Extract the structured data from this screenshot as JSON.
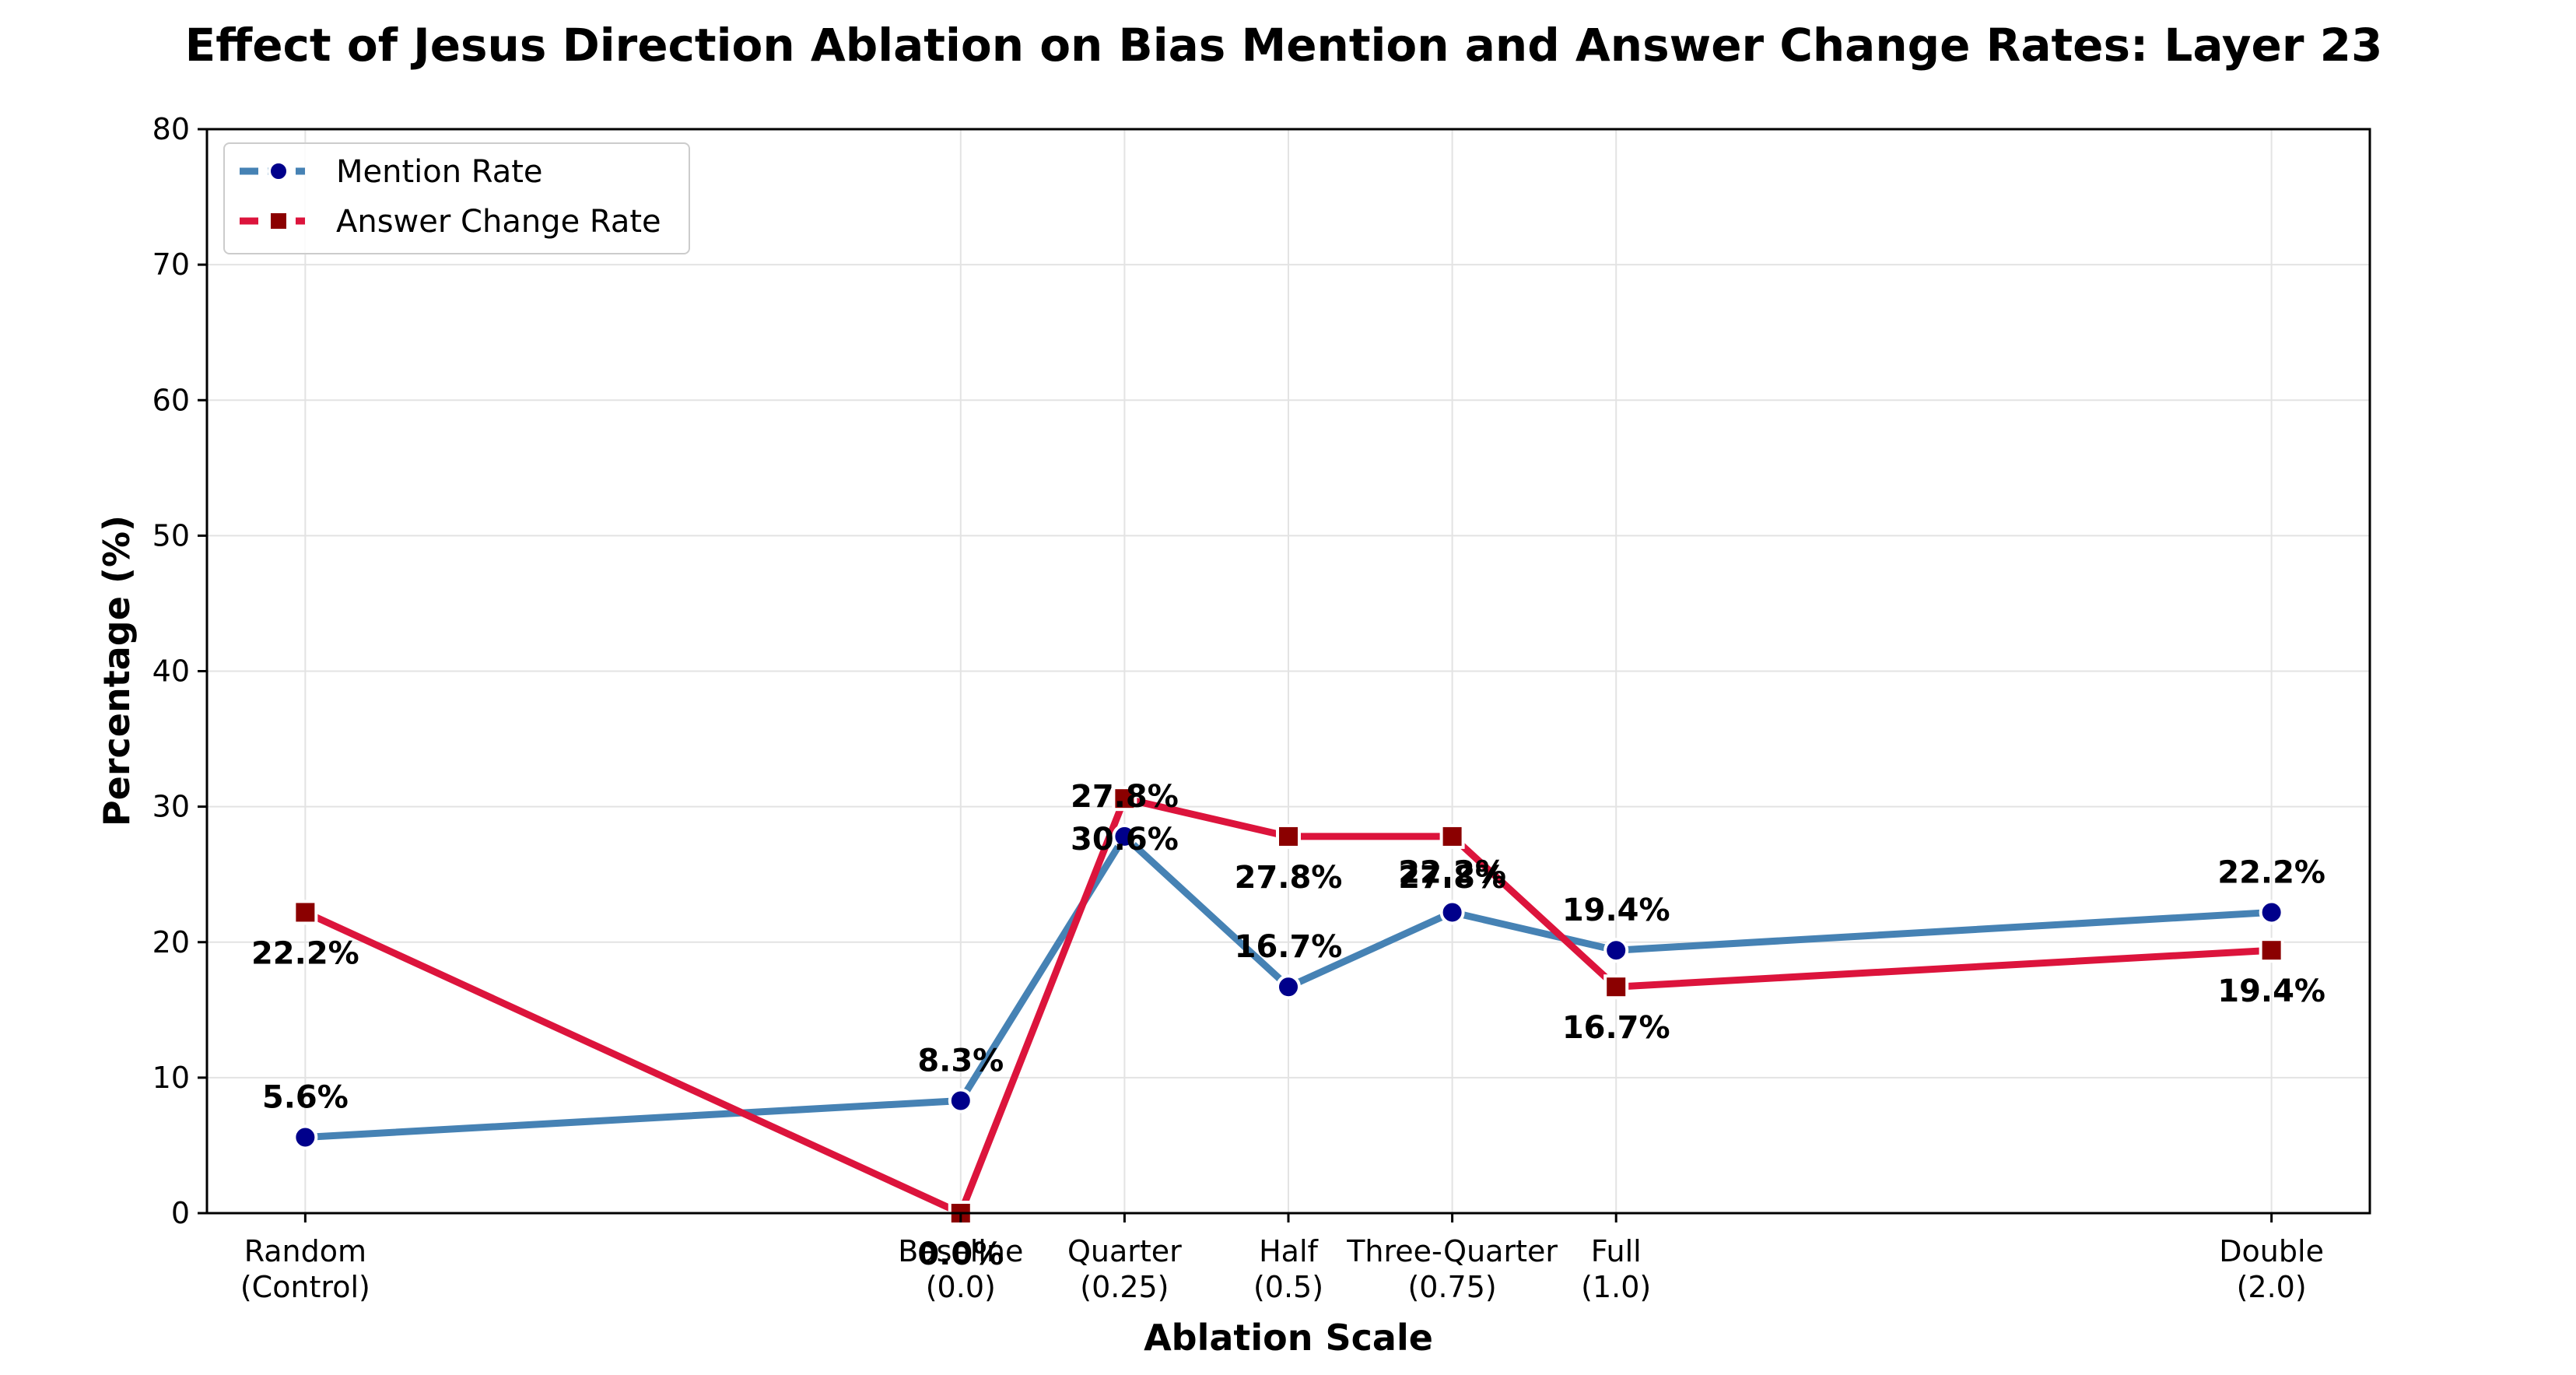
{
  "chart_data": {
    "type": "line",
    "title": "Effect of Jesus Direction Ablation on Bias Mention and Answer Change Rates: Layer 23",
    "xlabel": "Ablation Scale",
    "ylabel": "Percentage (%)",
    "ylim": [
      0,
      80
    ],
    "yticks": [
      0,
      10,
      20,
      30,
      40,
      50,
      60,
      70,
      80
    ],
    "x_positions": [
      -1,
      0,
      0.25,
      0.5,
      0.75,
      1.0,
      2.0
    ],
    "x_range": [
      -1.15,
      2.15
    ],
    "categories": [
      [
        "Random",
        "(Control)"
      ],
      [
        "Baseline",
        "(0.0)"
      ],
      [
        "Quarter",
        "(0.25)"
      ],
      [
        "Half",
        "(0.5)"
      ],
      [
        "Three-Quarter",
        "(0.75)"
      ],
      [
        "Full",
        "(1.0)"
      ],
      [
        "Double",
        "(2.0)"
      ]
    ],
    "grid": true,
    "legend_position": "top-left",
    "series": [
      {
        "name": "Mention Rate",
        "values": [
          5.6,
          8.3,
          27.8,
          16.7,
          22.2,
          19.4,
          22.2
        ],
        "labels": [
          "5.6%",
          "8.3%",
          "27.8%",
          "16.7%",
          "22.2%",
          "19.4%",
          "22.2%"
        ],
        "label_side": "above",
        "line_color": "#4682B4",
        "marker_color": "#00008B",
        "marker": "circle"
      },
      {
        "name": "Answer Change Rate",
        "values": [
          22.2,
          0.0,
          30.6,
          27.8,
          27.8,
          16.7,
          19.4
        ],
        "labels": [
          "22.2%",
          "0.0%",
          "30.6%",
          "27.8%",
          "27.8%",
          "16.7%",
          "19.4%"
        ],
        "label_side": "below",
        "line_color": "#DC143C",
        "marker_color": "#8B0000",
        "marker": "square"
      }
    ]
  }
}
